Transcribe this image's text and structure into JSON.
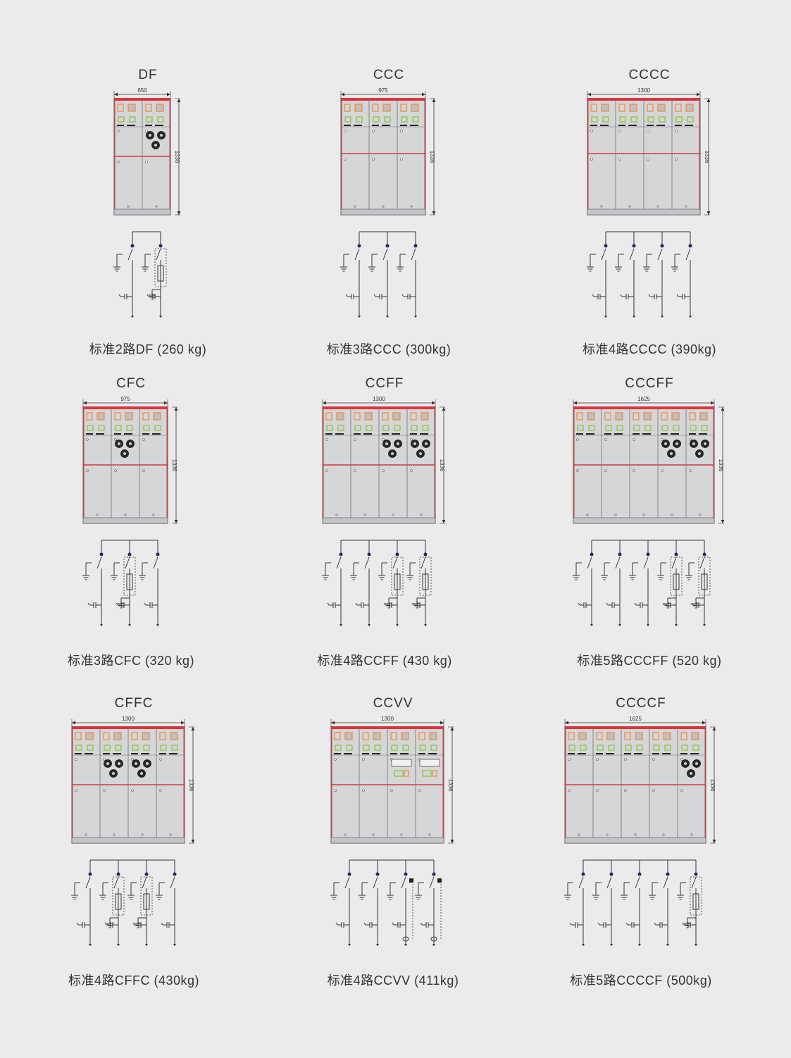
{
  "panels": [
    {
      "code": "DF",
      "width": "650",
      "height": "1336",
      "caption": "标准2路DF (260 kg)",
      "units": [
        "C",
        "F"
      ]
    },
    {
      "code": "CCC",
      "width": "975",
      "height": "1336",
      "caption": "标准3路CCC (300kg)",
      "units": [
        "C",
        "C",
        "C"
      ]
    },
    {
      "code": "CCCC",
      "width": "1300",
      "height": "1336",
      "caption": "标准4路CCCC (390kg)",
      "units": [
        "C",
        "C",
        "C",
        "C"
      ]
    },
    {
      "code": "CFC",
      "width": "975",
      "height": "1336",
      "caption": "标准3路CFC (320 kg)",
      "units": [
        "C",
        "F",
        "C"
      ]
    },
    {
      "code": "CCFF",
      "width": "1300",
      "height": "1336",
      "caption": "标准4路CCFF (430 kg)",
      "units": [
        "C",
        "C",
        "F",
        "F"
      ]
    },
    {
      "code": "CCCFF",
      "width": "1625",
      "height": "1336",
      "caption": "标准5路CCCFF  (520 kg)",
      "units": [
        "C",
        "C",
        "C",
        "F",
        "F"
      ]
    },
    {
      "code": "CFFC",
      "width": "1300",
      "height": "1336",
      "caption": "标准4路CFFC  (430kg)",
      "units": [
        "C",
        "F",
        "F",
        "C"
      ]
    },
    {
      "code": "CCVV",
      "width": "1300",
      "height": "1336",
      "caption": "标准4路CCVV  (411kg)",
      "units": [
        "C",
        "C",
        "V",
        "V"
      ]
    },
    {
      "code": "CCCCF",
      "width": "1625",
      "height": "1336",
      "caption": "标准5路CCCCF  (500kg)",
      "units": [
        "C",
        "C",
        "C",
        "C",
        "F"
      ]
    }
  ],
  "colors": {
    "background": "#ebebeb",
    "panel": "#d4d6d8",
    "frame": "#707070",
    "red_line": "#d9363e",
    "orange": "#ee8a3a",
    "green": "#8fc440",
    "bus_dot": "#1f2a5c",
    "line": "#333333"
  }
}
